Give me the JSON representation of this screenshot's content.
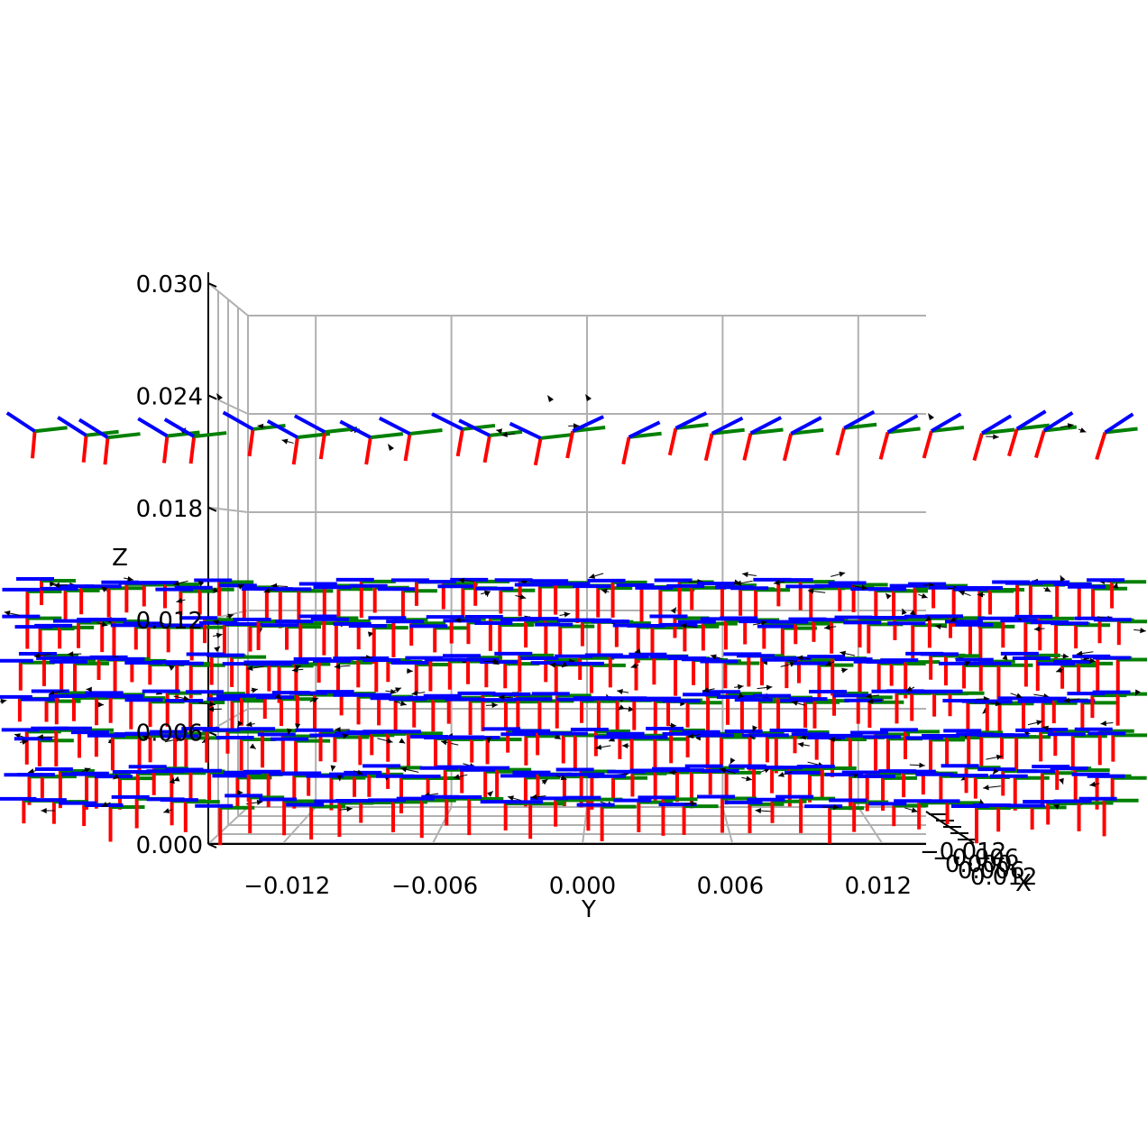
{
  "chart_data": {
    "type": "3d-quiver",
    "title": "",
    "view": "side (looking along X)",
    "axes": {
      "x": {
        "label": "X",
        "ticks": [
          "−0.012",
          "−0.006",
          "0.000",
          "0.006",
          "0.012"
        ]
      },
      "y": {
        "label": "Y",
        "ticks": [
          "−0.012",
          "−0.006",
          "0.000",
          "0.006",
          "0.012"
        ],
        "range": [
          -0.015,
          0.015
        ]
      },
      "z": {
        "label": "Z",
        "ticks": [
          "0.000",
          "0.006",
          "0.012",
          "0.018",
          "0.024",
          "0.030"
        ],
        "range": [
          0.0,
          0.03
        ]
      }
    },
    "grid": true,
    "frame_colors": {
      "x_axis": "#ff0000",
      "y_axis": "#008000",
      "z_axis": "#0000ff",
      "arrow": "#000000"
    },
    "layers": [
      {
        "z": 0.021,
        "poses": 26
      },
      {
        "z": 0.0138,
        "poses": 56
      },
      {
        "z": 0.0118,
        "poses": 60
      },
      {
        "z": 0.0098,
        "poses": 60
      },
      {
        "z": 0.0078,
        "poses": 60
      },
      {
        "z": 0.0058,
        "poses": 60
      },
      {
        "z": 0.0038,
        "poses": 58
      },
      {
        "z": 0.0022,
        "poses": 40
      }
    ]
  }
}
